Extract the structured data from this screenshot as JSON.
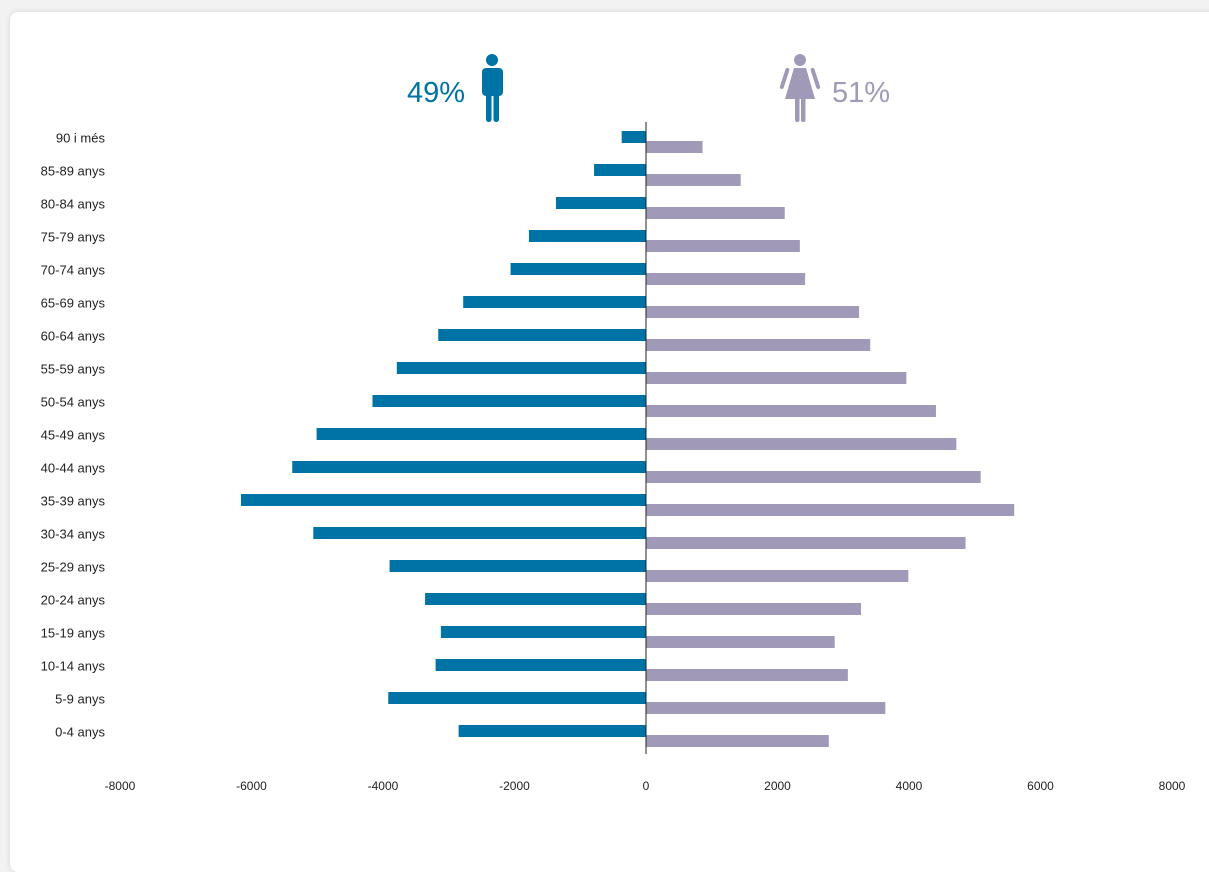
{
  "chart_data": {
    "type": "bar",
    "orientation": "horizontal",
    "categories": [
      "0-4 anys",
      "5-9 anys",
      "10-14 anys",
      "15-19 anys",
      "20-24 anys",
      "25-29 anys",
      "30-34 anys",
      "35-39 anys",
      "40-44 anys",
      "45-49 anys",
      "50-54 anys",
      "55-59 anys",
      "60-64 anys",
      "65-69 anys",
      "70-74 anys",
      "75-79 anys",
      "80-84 anys",
      "85-89 anys",
      "90 i més"
    ],
    "series": [
      {
        "name": "49%",
        "color": "#0073a6",
        "icon": "male-icon",
        "values": [
          -2850,
          -3920,
          -3200,
          -3120,
          -3360,
          -3900,
          -5060,
          -6160,
          -5380,
          -5010,
          -4160,
          -3790,
          -3160,
          -2780,
          -2060,
          -1780,
          -1370,
          -790,
          -370
        ]
      },
      {
        "name": "51%",
        "color": "#a09ab8",
        "icon": "female-icon",
        "values": [
          2780,
          3640,
          3070,
          2870,
          3270,
          3990,
          4860,
          5600,
          5090,
          4720,
          4410,
          3960,
          3410,
          3240,
          2420,
          2340,
          2110,
          1440,
          860
        ]
      }
    ],
    "x_ticks": [
      -8000,
      -6000,
      -4000,
      -2000,
      0,
      2000,
      4000,
      6000,
      8000
    ],
    "xlim": [
      -8000,
      8000
    ],
    "title": "",
    "xlabel": "",
    "ylabel": "",
    "grid": false,
    "legend": "top-center"
  }
}
